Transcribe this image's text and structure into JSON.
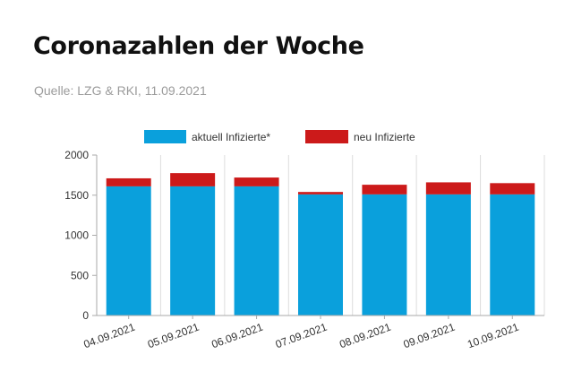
{
  "header": {
    "title": "Coronazahlen der Woche",
    "source": "Quelle: LZG & RKI, 11.09.2021"
  },
  "chart_data": {
    "type": "bar",
    "stacked": true,
    "categories": [
      "04.09.2021",
      "05.09.2021",
      "06.09.2021",
      "07.09.2021",
      "08.09.2021",
      "09.09.2021",
      "10.09.2021"
    ],
    "series": [
      {
        "name": "aktuell Infizierte*",
        "color": "#0aa0dc",
        "values": [
          1610,
          1610,
          1610,
          1510,
          1510,
          1510,
          1510
        ]
      },
      {
        "name": "neu Infizierte",
        "color": "#cc1a1a",
        "values": [
          100,
          165,
          110,
          30,
          120,
          150,
          140
        ]
      }
    ],
    "ylim": [
      0,
      2000
    ],
    "yticks": [
      0,
      500,
      1000,
      1500,
      2000
    ],
    "grid": "vertical",
    "legend_position": "top"
  }
}
